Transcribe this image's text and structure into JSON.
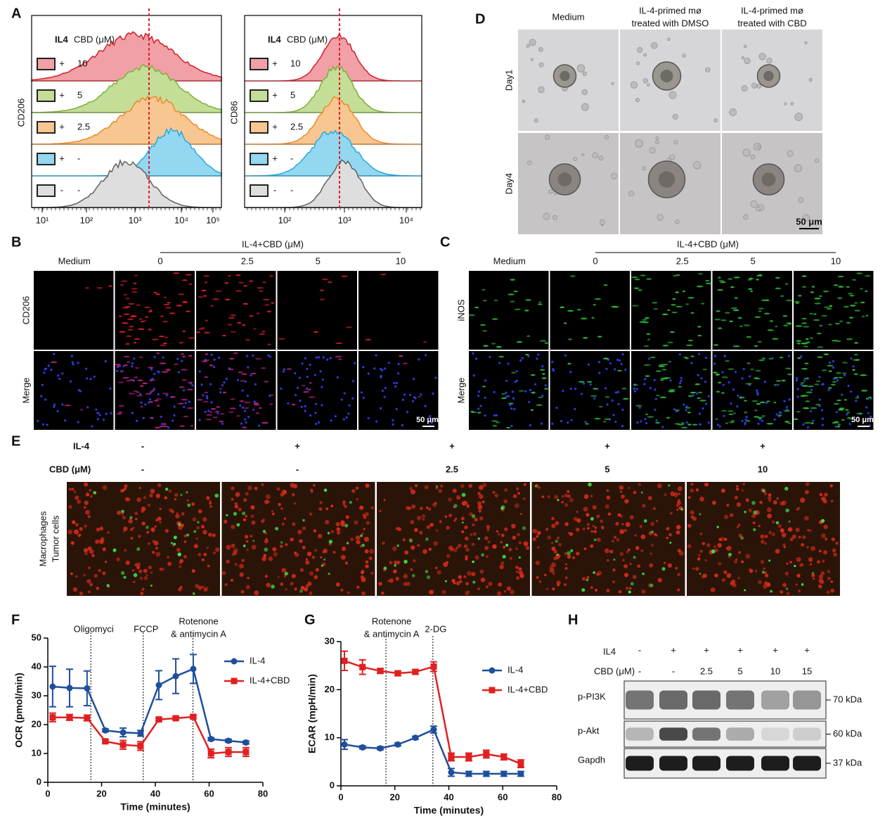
{
  "panels": {
    "A": {
      "letter": "A",
      "header": [
        "IL4",
        "CBD (μM)"
      ],
      "rows": [
        [
          "+",
          "10"
        ],
        [
          "+",
          "5"
        ],
        [
          "+",
          "2.5"
        ],
        [
          "+",
          "-"
        ],
        [
          "-",
          "-"
        ]
      ],
      "plots": [
        {
          "ylabel": "CD206",
          "xticks": [
            "10¹",
            "10²",
            "10³",
            "10⁴",
            "10⁵"
          ]
        },
        {
          "ylabel": "CD86",
          "xticks": [
            "10²",
            "10³",
            "10⁴"
          ]
        }
      ]
    },
    "B": {
      "letter": "B",
      "group_label": "IL-4+CBD (μM)",
      "columns": [
        "Medium",
        "0",
        "2.5",
        "5",
        "10"
      ],
      "rows": [
        "CD206",
        "Merge"
      ],
      "scale_bar": "50 μm"
    },
    "C": {
      "letter": "C",
      "group_label": "IL-4+CBD (μM)",
      "columns": [
        "Medium",
        "0",
        "2.5",
        "5",
        "10"
      ],
      "rows": [
        "iNOS",
        "Merge"
      ],
      "scale_bar": "50 μm"
    },
    "D": {
      "letter": "D",
      "columns": [
        "Medium",
        [
          "IL-4-primed mø",
          "treated with DMSO"
        ],
        [
          "IL-4-primed mø",
          "treated with CBD"
        ]
      ],
      "rows": [
        "Day1",
        "Day4"
      ],
      "scale_bar": "50 μm"
    },
    "E": {
      "letter": "E",
      "row_labels": [
        "IL-4",
        "CBD (μM)"
      ],
      "il4": [
        "-",
        "+",
        "+",
        "+",
        "+"
      ],
      "cbd": [
        "-",
        "-",
        "2.5",
        "5",
        "10"
      ],
      "side_labels": [
        "Macrophages",
        "Tumor cells"
      ]
    },
    "H": {
      "letter": "H",
      "row_labels": [
        "IL4",
        "CBD (μM)"
      ],
      "il4": [
        "-",
        "+",
        "+",
        "+",
        "+",
        "+"
      ],
      "cbd": [
        "-",
        "-",
        "2.5",
        "5",
        "10",
        "15"
      ],
      "blots": [
        {
          "name": "p-PI3K",
          "size": "70 kDa"
        },
        {
          "name": "p-Akt",
          "size": "60 kDa"
        },
        {
          "name": "Gapdh",
          "size": "37 kDa"
        }
      ]
    }
  },
  "chart_data": [
    {
      "type": "line",
      "panel_letter": "F",
      "xlabel": "Time (minutes)",
      "ylabel": "OCR (pmol/min)",
      "xlim": [
        0,
        80
      ],
      "xticks": [
        0,
        20,
        40,
        60,
        80
      ],
      "ylim": [
        0,
        50
      ],
      "yticks": [
        0,
        10,
        20,
        30,
        40,
        50
      ],
      "legend": "right",
      "markers": [
        {
          "x": 16,
          "label": [
            "Oligomyci"
          ]
        },
        {
          "x": 35.5,
          "label": [
            "FCCP"
          ]
        },
        {
          "x": 54,
          "label": [
            "Rotenone",
            "& antimycin A"
          ]
        }
      ],
      "series": [
        {
          "name": "IL-4",
          "color": "#1f4e9c",
          "marker": "circle",
          "x": [
            1.8,
            8.1,
            14.6,
            21.4,
            28,
            34.5,
            41.3,
            47.6,
            54.1,
            60.7,
            67.2,
            73.7
          ],
          "values": [
            33.2,
            32.7,
            32.6,
            18,
            17.3,
            17,
            33.7,
            36.8,
            39.3,
            15,
            14.4,
            13.8
          ],
          "errors": [
            7,
            6.5,
            6,
            0.5,
            1.5,
            1,
            5,
            6,
            5,
            0.5,
            0.5,
            0.5
          ]
        },
        {
          "name": "IL-4+CBD",
          "color": "#e02020",
          "marker": "square",
          "x": [
            1.8,
            8.1,
            14.6,
            21.4,
            28,
            34.5,
            41.3,
            47.6,
            54.1,
            60.7,
            67.2,
            73.7
          ],
          "values": [
            22.5,
            22.5,
            22.3,
            14.2,
            13,
            12.6,
            21.8,
            22.2,
            22.7,
            10,
            10.5,
            10.5
          ],
          "errors": [
            1.5,
            1,
            1,
            0.5,
            1.5,
            1.5,
            0.5,
            0.5,
            0.5,
            1.5,
            1.5,
            1.5
          ]
        }
      ]
    },
    {
      "type": "line",
      "panel_letter": "G",
      "xlabel": "Time (minutes)",
      "ylabel": "ECAR (mpH/min)",
      "xlim": [
        0,
        80
      ],
      "xticks": [
        0,
        20,
        40,
        60,
        80
      ],
      "ylim": [
        0,
        30
      ],
      "yticks": [
        0,
        10,
        20,
        30
      ],
      "legend": "right",
      "markers": [
        {
          "x": 16.7,
          "label": [
            "Rotenone",
            "& antimycin A"
          ]
        },
        {
          "x": 34.1,
          "label": [
            "2-DG"
          ]
        }
      ],
      "series": [
        {
          "name": "IL-4",
          "color": "#1f4e9c",
          "marker": "circle",
          "x": [
            1.3,
            8,
            14.6,
            21.1,
            27.6,
            34.4,
            40.9,
            47.4,
            53.9,
            60.4,
            66.7
          ],
          "values": [
            8.6,
            8,
            7.8,
            8.6,
            10,
            11.7,
            2.8,
            2.5,
            2.5,
            2.5,
            2.5
          ],
          "errors": [
            1,
            0.3,
            0.3,
            0.3,
            0.3,
            0.7,
            0.8,
            0.5,
            0.5,
            0.5,
            0.5
          ]
        },
        {
          "name": "IL-4+CBD",
          "color": "#e02020",
          "marker": "square",
          "x": [
            1.3,
            8,
            14.6,
            21.1,
            27.6,
            34.4,
            40.9,
            47.4,
            53.9,
            60.4,
            66.7
          ],
          "values": [
            26,
            24.7,
            23.9,
            23.4,
            23.7,
            24.8,
            6,
            6,
            6.6,
            6,
            4.6
          ],
          "errors": [
            2,
            1.5,
            0.5,
            0.5,
            0.5,
            1,
            0.8,
            0.8,
            0.8,
            0.6,
            0.8
          ]
        }
      ]
    }
  ]
}
